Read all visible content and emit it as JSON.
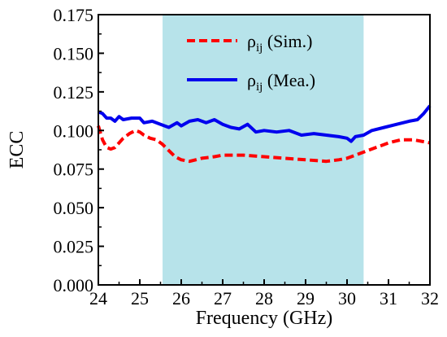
{
  "chart_data": {
    "type": "line",
    "xlabel": "Frequency (GHz)",
    "ylabel": "ECC",
    "xlim": [
      24,
      32
    ],
    "ylim": [
      0,
      0.175
    ],
    "xticks": [
      "24",
      "25",
      "26",
      "27",
      "28",
      "29",
      "30",
      "31",
      "32"
    ],
    "yticks": [
      "0.000",
      "0.025",
      "0.050",
      "0.075",
      "0.100",
      "0.125",
      "0.150",
      "0.175"
    ],
    "grid": false,
    "legend_position": "top-right",
    "highlight_band": {
      "x_start": 25.55,
      "x_end": 30.4,
      "color": "#b7e3ea"
    },
    "series": [
      {
        "name_symbol": "ρ",
        "name_subscript": "ij",
        "name_suffix": "(Sim.)",
        "color": "#ff0000",
        "style": "dashed",
        "x": [
          24.0,
          24.1,
          24.2,
          24.3,
          24.4,
          24.5,
          24.6,
          24.75,
          24.9,
          25.0,
          25.1,
          25.25,
          25.4,
          25.55,
          25.7,
          25.85,
          26.0,
          26.2,
          26.5,
          26.8,
          27.0,
          27.5,
          28.0,
          28.5,
          29.0,
          29.5,
          29.8,
          30.0,
          30.2,
          30.5,
          30.8,
          31.0,
          31.3,
          31.6,
          31.8,
          32.0
        ],
        "y": [
          0.103,
          0.094,
          0.089,
          0.088,
          0.089,
          0.092,
          0.095,
          0.098,
          0.1,
          0.099,
          0.097,
          0.095,
          0.094,
          0.091,
          0.087,
          0.083,
          0.081,
          0.08,
          0.082,
          0.083,
          0.084,
          0.084,
          0.083,
          0.082,
          0.081,
          0.08,
          0.081,
          0.082,
          0.084,
          0.087,
          0.09,
          0.092,
          0.094,
          0.094,
          0.093,
          0.092
        ]
      },
      {
        "name_symbol": "ρ",
        "name_subscript": "ij",
        "name_suffix": "(Mea.)",
        "color": "#0000ee",
        "style": "solid",
        "x": [
          24.0,
          24.1,
          24.2,
          24.3,
          24.4,
          24.5,
          24.6,
          24.8,
          25.0,
          25.1,
          25.3,
          25.5,
          25.7,
          25.9,
          26.0,
          26.2,
          26.4,
          26.6,
          26.8,
          27.0,
          27.2,
          27.4,
          27.6,
          27.8,
          28.0,
          28.3,
          28.6,
          28.9,
          29.2,
          29.5,
          29.8,
          30.0,
          30.1,
          30.2,
          30.4,
          30.6,
          30.9,
          31.2,
          31.5,
          31.7,
          31.85,
          32.0
        ],
        "y": [
          0.112,
          0.111,
          0.108,
          0.108,
          0.106,
          0.109,
          0.107,
          0.108,
          0.108,
          0.105,
          0.106,
          0.104,
          0.102,
          0.105,
          0.103,
          0.106,
          0.107,
          0.105,
          0.107,
          0.104,
          0.102,
          0.101,
          0.104,
          0.099,
          0.1,
          0.099,
          0.1,
          0.097,
          0.098,
          0.097,
          0.096,
          0.095,
          0.093,
          0.096,
          0.097,
          0.1,
          0.102,
          0.104,
          0.106,
          0.107,
          0.111,
          0.116
        ]
      }
    ]
  }
}
